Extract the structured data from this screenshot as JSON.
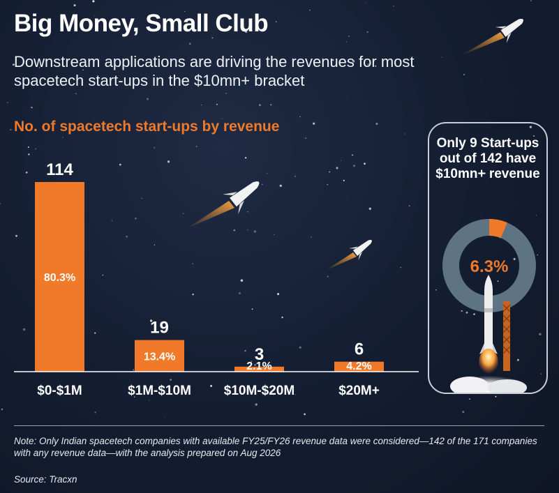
{
  "header": {
    "title": "Big Money, Small Club",
    "subtitle": "Downstream applications are driving the revenues for most spacetech start-ups in the $10mn+ bracket"
  },
  "chart_data": {
    "type": "bar",
    "title": "No. of spacetech start-ups by revenue",
    "categories": [
      "$0-$1M",
      "$1M-$10M",
      "$10M-$20M",
      "$20M+"
    ],
    "values": [
      114,
      19,
      3,
      6
    ],
    "percent_labels": [
      "80.3%",
      "13.4%",
      "2.1%",
      "4.2%"
    ],
    "ylim": [
      0,
      114
    ],
    "grid": false,
    "bar_color": "#f07a2a"
  },
  "callout": {
    "text": "Only 9 Start-ups out of 142 have $10mn+ revenue",
    "donut": {
      "value": 6.3,
      "label": "6.3%",
      "fill_color": "#f07a2a",
      "track_color": "#5e7383"
    }
  },
  "footer": {
    "note": "Note: Only Indian spacetech companies with available FY25/FY26 revenue data were considered—142 of the 171 companies with any revenue data—with the analysis prepared on Aug 2026",
    "source": "Source: Tracxn"
  },
  "decorations": [
    "rocket-icon",
    "rocket-launch-icon",
    "star-field"
  ]
}
